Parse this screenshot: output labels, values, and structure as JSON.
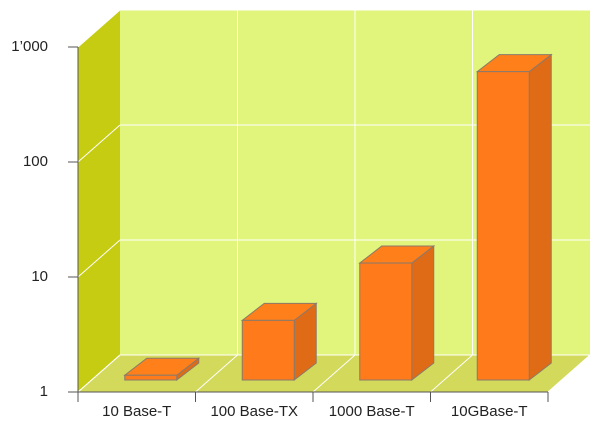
{
  "chart_data": {
    "type": "bar",
    "categories": [
      "10 Base-T",
      "100 Base-TX",
      "1000 Base-T",
      "10GBase-T"
    ],
    "values": [
      1.1,
      3.3,
      10.4,
      480
    ],
    "color": "#ff7a1a",
    "ylim": [
      1,
      1000
    ],
    "yticks": [
      1,
      10,
      100,
      {
        "value": 1000,
        "label": "1’000"
      }
    ],
    "log_scale": true,
    "grid": true
  }
}
